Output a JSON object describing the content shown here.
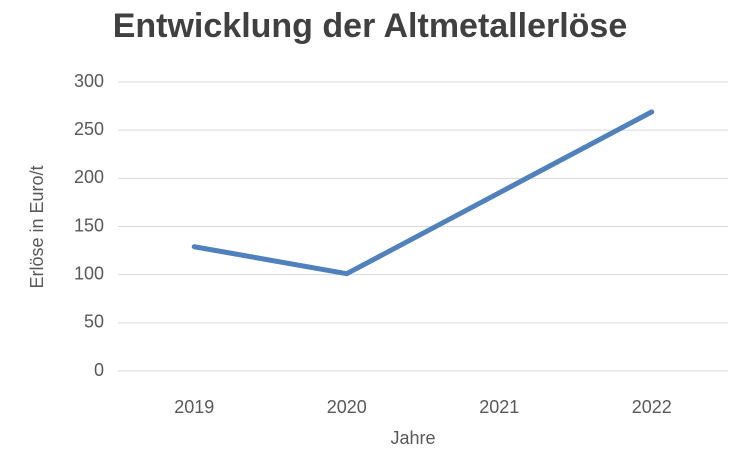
{
  "chart_data": {
    "type": "line",
    "title": "Entwicklung der Altmetallerlöse",
    "x_label": "Jahre",
    "y_label": "Erlöse in Euro/t",
    "categories": [
      "2019",
      "2020",
      "2021",
      "2022"
    ],
    "series": [
      {
        "name": "Erlöse",
        "color": "#4f81bd",
        "values": [
          129,
          101,
          185,
          269
        ]
      }
    ],
    "ylim": [
      0,
      300
    ],
    "yticks": [
      0,
      50,
      100,
      150,
      200,
      250,
      300
    ],
    "grid": true
  }
}
